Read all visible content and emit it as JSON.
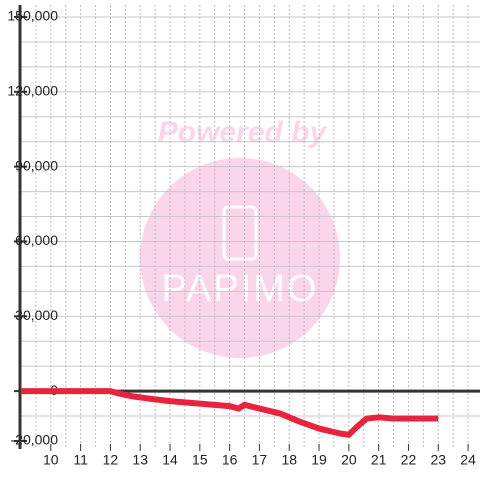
{
  "chart_data": {
    "type": "line",
    "watermark": {
      "title": "Powered by",
      "brand": "PAPIMO"
    },
    "x": [
      9,
      12,
      12.3,
      12.7,
      13.3,
      14,
      15,
      16,
      16.3,
      16.5,
      17,
      17.7,
      18.3,
      19,
      19.7,
      20,
      20.3,
      20.6,
      21,
      21.5,
      23
    ],
    "series": [
      {
        "color": "#e8243c",
        "values": [
          0,
          0,
          -1000,
          -2000,
          -3000,
          -4000,
          -5000,
          -6000,
          -7000,
          -5500,
          -7000,
          -9000,
          -12000,
          -15000,
          -17000,
          -17500,
          -14000,
          -11000,
          -10500,
          -11000,
          -11000
        ]
      }
    ],
    "xlim": [
      9,
      24.4
    ],
    "xticks": [
      10,
      11,
      12,
      13,
      14,
      15,
      16,
      17,
      18,
      19,
      20,
      21,
      22,
      23,
      24
    ],
    "xgrid": [
      9.5,
      10,
      10.5,
      11,
      11.5,
      12,
      12.5,
      13,
      13.5,
      14,
      14.5,
      15,
      15.5,
      16,
      16.5,
      17,
      17.5,
      18,
      18.5,
      19,
      19.5,
      20,
      20.5,
      21,
      21.5,
      22,
      22.5,
      23,
      23.5,
      24
    ],
    "ylim": [
      -20000,
      150000
    ],
    "yticks": [
      {
        "value": -20000,
        "label": "-20,000"
      },
      0,
      {
        "value": 30000,
        "label": "30,000"
      },
      {
        "value": 60000,
        "label": "60,000"
      },
      {
        "value": 90000,
        "label": "90,000"
      },
      {
        "value": 120000,
        "label": "120,000"
      },
      {
        "value": 150000,
        "label": "150,000"
      }
    ],
    "ygrid": [
      -10000,
      10000,
      20000,
      30000,
      40000,
      50000,
      60000,
      70000,
      80000,
      90000,
      100000,
      110000,
      120000,
      130000,
      140000,
      150000
    ],
    "grid": true
  }
}
